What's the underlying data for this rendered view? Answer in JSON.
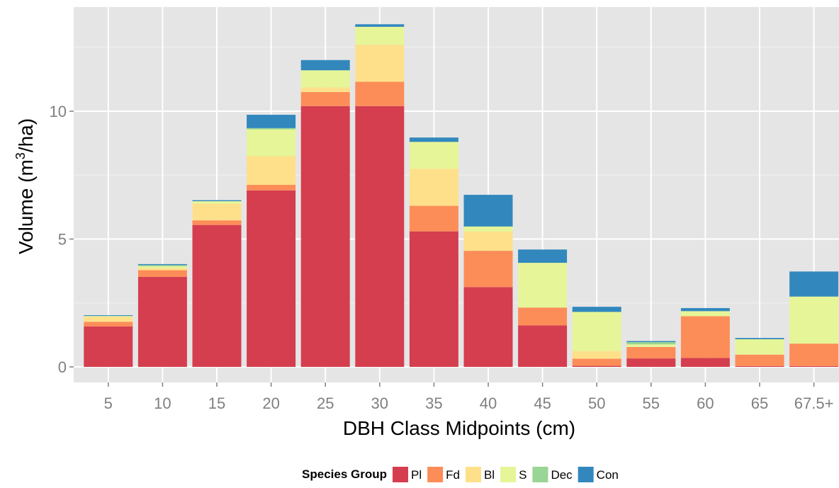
{
  "chart_data": {
    "type": "bar",
    "stacked": true,
    "title": "",
    "xlabel": "DBH Class Midpoints (cm)",
    "ylabel_main": "Volume (m",
    "ylabel_sup": "3",
    "ylabel_end": "/ha)",
    "ylim": [
      0,
      13.8
    ],
    "yticks": [
      0,
      5,
      10
    ],
    "ytick_labels": [
      "0",
      "5",
      "10"
    ],
    "grid": true,
    "legend": {
      "title": "Species Group",
      "placement": "bottom"
    },
    "categories": [
      "5",
      "10",
      "15",
      "20",
      "25",
      "30",
      "35",
      "40",
      "45",
      "50",
      "55",
      "60",
      "65",
      "67.5+"
    ],
    "series": [
      {
        "name": "Pl",
        "color": "#d53e4f",
        "values": [
          1.58,
          3.52,
          5.55,
          6.9,
          10.2,
          10.2,
          5.3,
          3.12,
          1.62,
          0.04,
          0.33,
          0.35,
          0.03,
          0.03
        ]
      },
      {
        "name": "Fd",
        "color": "#fc8d59",
        "values": [
          0.18,
          0.26,
          0.18,
          0.22,
          0.55,
          0.95,
          1.0,
          1.42,
          0.7,
          0.28,
          0.45,
          1.63,
          0.45,
          0.88
        ]
      },
      {
        "name": "Bl",
        "color": "#fee08b",
        "values": [
          0.2,
          0.08,
          0.65,
          1.12,
          0.18,
          1.45,
          1.45,
          0.75,
          0.0,
          0.3,
          0.0,
          0.0,
          0.0,
          0.0
        ]
      },
      {
        "name": "S",
        "color": "#e6f598",
        "values": [
          0.03,
          0.08,
          0.1,
          1.05,
          0.67,
          0.7,
          1.05,
          0.2,
          1.75,
          1.53,
          0.1,
          0.2,
          0.6,
          1.84
        ]
      },
      {
        "name": "Dec",
        "color": "#99d594",
        "values": [
          0.0,
          0.04,
          0.0,
          0.05,
          0.0,
          0.0,
          0.0,
          0.0,
          0.0,
          0.0,
          0.09,
          0.0,
          0.0,
          0.0
        ]
      },
      {
        "name": "Con",
        "color": "#3288bd",
        "values": [
          0.03,
          0.04,
          0.04,
          0.52,
          0.4,
          0.1,
          0.17,
          1.24,
          0.52,
          0.2,
          0.04,
          0.12,
          0.05,
          0.98
        ]
      }
    ]
  }
}
